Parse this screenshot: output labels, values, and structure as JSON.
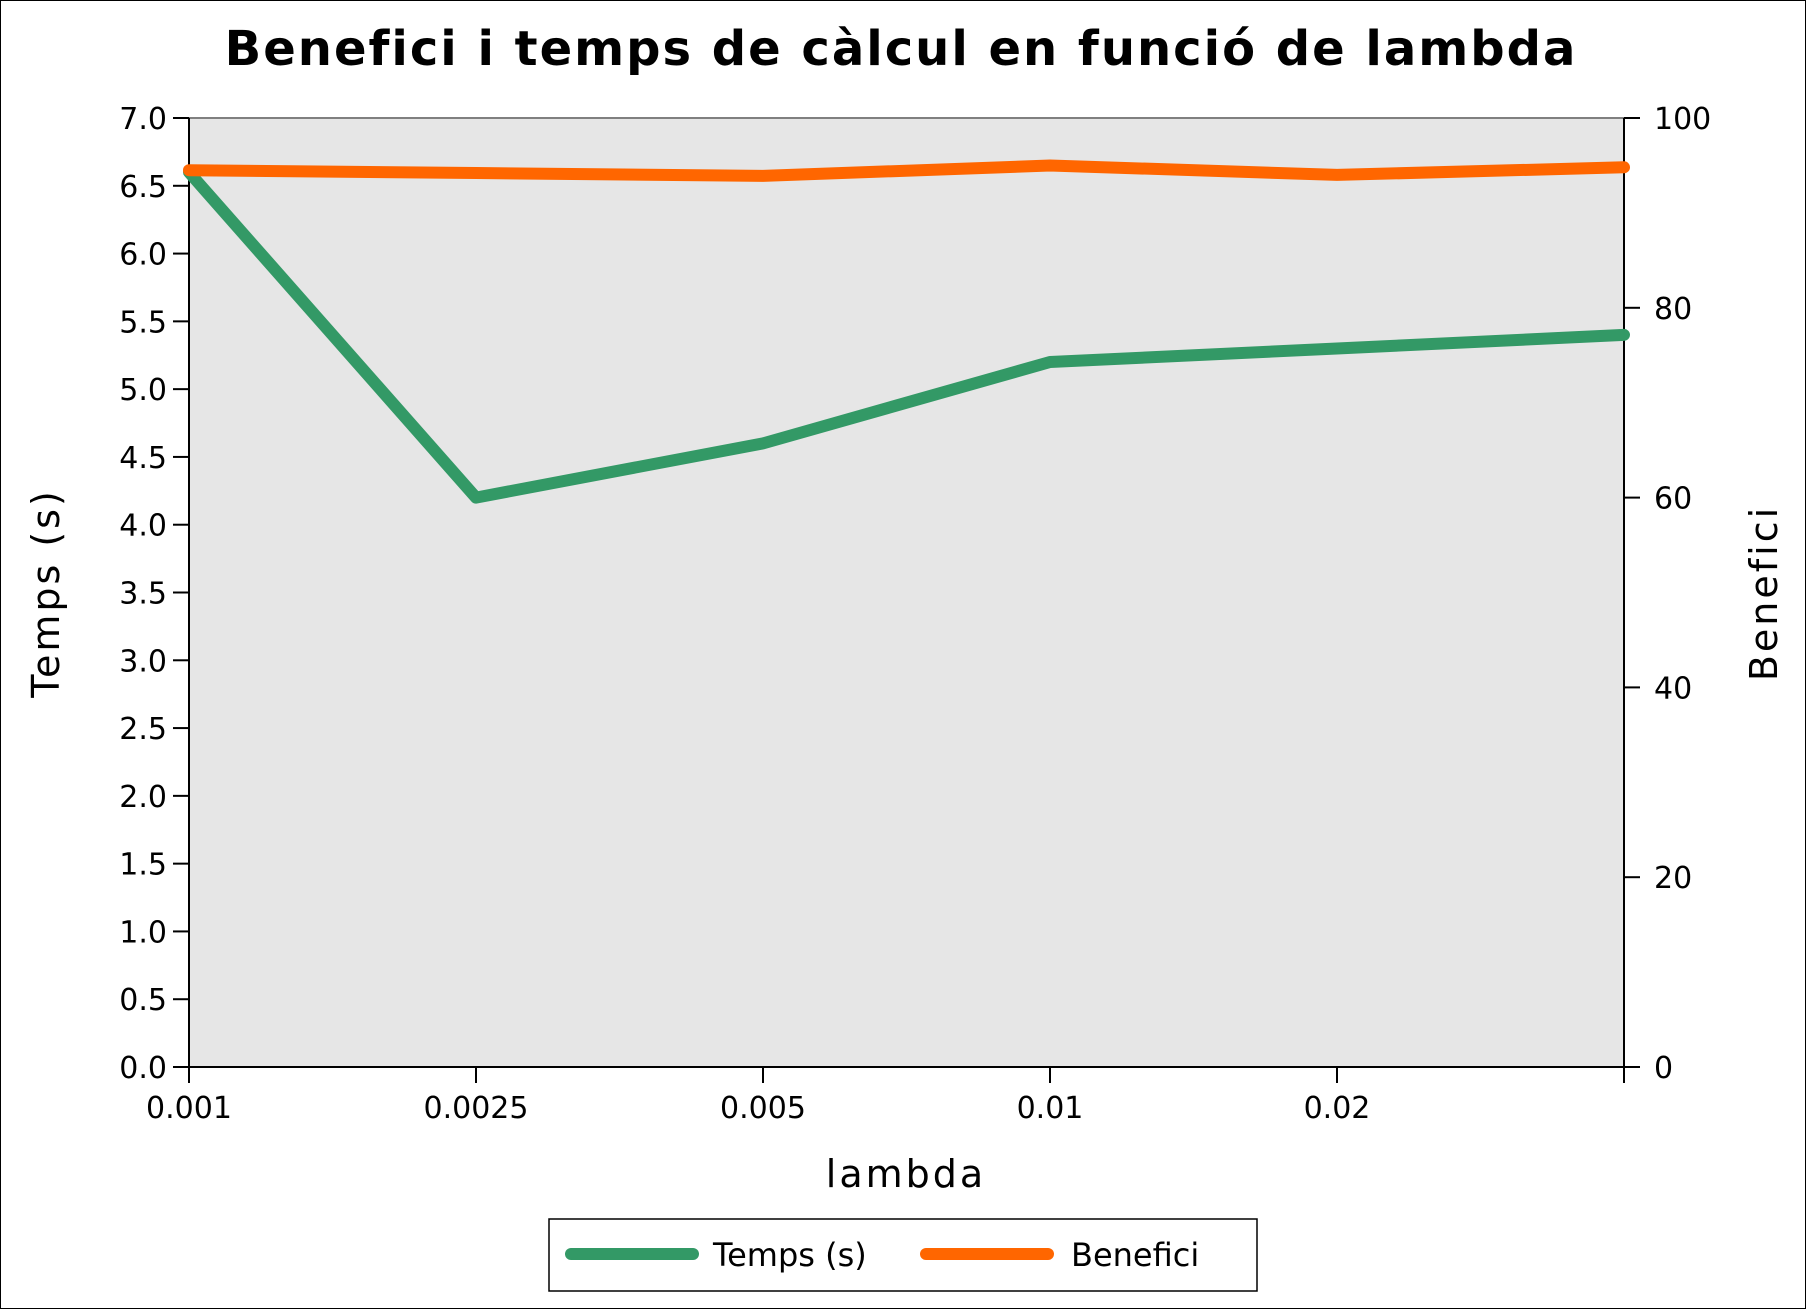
{
  "chart_data": {
    "type": "line",
    "title": "Benefici i temps de càlcul en funció de lambda",
    "xlabel": "lambda",
    "ylabel_left": "Temps (s)",
    "ylabel_right": "Benefici",
    "categories": [
      "0.001",
      "0.0025",
      "0.005",
      "0.01",
      "0.02",
      ""
    ],
    "ylim_left": [
      0,
      7
    ],
    "ylim_right": [
      0,
      100
    ],
    "yticks_left": [
      "0.0",
      "0.5",
      "1.0",
      "1.5",
      "2.0",
      "2.5",
      "3.0",
      "3.5",
      "4.0",
      "4.5",
      "5.0",
      "5.5",
      "6.0",
      "6.5",
      "7.0"
    ],
    "yticks_right": [
      "0",
      "20",
      "40",
      "60",
      "80",
      "100"
    ],
    "grid": false,
    "legend_position": "bottom",
    "plot_background": "#e6e6e6",
    "series": [
      {
        "name": "Temps (s)",
        "axis": "left",
        "color": "#339966",
        "values": [
          6.6,
          4.2,
          4.6,
          5.2,
          5.3,
          5.4
        ]
      },
      {
        "name": "Benefici",
        "axis": "right",
        "color": "#ff6600",
        "values": [
          94.5,
          94.2,
          93.9,
          95.0,
          94.0,
          94.8
        ]
      }
    ]
  }
}
